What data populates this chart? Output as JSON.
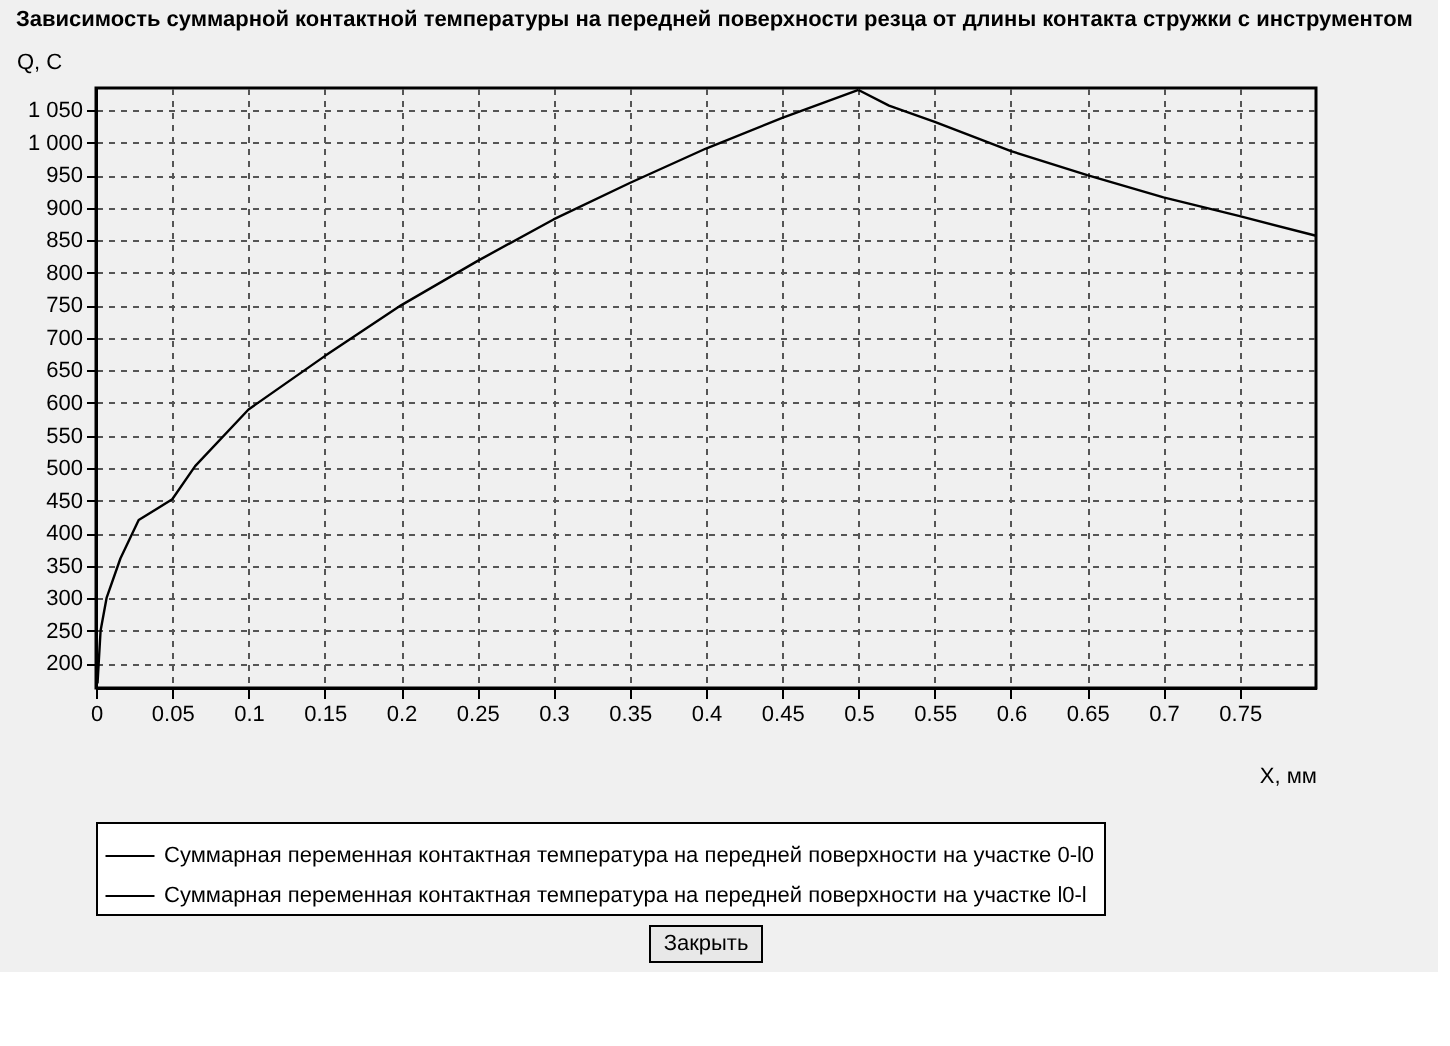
{
  "chart_data": {
    "type": "line",
    "title": "Зависимость суммарной контактной температуры на передней поверхности резца от длины контакта стружки с инструментом",
    "xlabel": "X, мм",
    "ylabel": "Q, C",
    "series": [
      {
        "name": "Суммарная переменная контактная температура на передней поверхности на участке 0-l0",
        "color": "#000000",
        "x": [
          0.001,
          0.003,
          0.007,
          0.016,
          0.028,
          0.05,
          0.065,
          0.1,
          0.15,
          0.2,
          0.25,
          0.3,
          0.35,
          0.4,
          0.45,
          0.5
        ],
        "values": [
          169,
          250,
          301,
          361,
          420,
          452,
          503,
          590,
          672,
          750,
          818,
          882,
          938,
          991,
          1038,
          1081
        ]
      },
      {
        "name": "Суммарная переменная контактная температура на передней поверхности на участке l0-l",
        "color": "#000000",
        "x": [
          0.5,
          0.52,
          0.55,
          0.6,
          0.65,
          0.7,
          0.75,
          0.8
        ],
        "values": [
          1081,
          1057,
          1032,
          987,
          950,
          916,
          887,
          857
        ]
      }
    ],
    "xlim": [
      0,
      0.8
    ],
    "xticks": [
      0,
      0.05,
      0.1,
      0.15,
      0.2,
      0.25,
      0.3,
      0.35,
      0.4,
      0.45,
      0.5,
      0.55,
      0.6,
      0.65,
      0.7,
      0.75
    ],
    "ylim": [
      162,
      1084
    ],
    "yticks": [
      200,
      250,
      300,
      350,
      400,
      450,
      500,
      550,
      600,
      650,
      700,
      750,
      800,
      850,
      900,
      950,
      {
        "value": 1000,
        "label": "1 000"
      },
      {
        "value": 1050,
        "label": "1 050"
      }
    ],
    "grid": true,
    "legend": "bottom",
    "marker": "none",
    "line_style": "solid",
    "annotations": [
      "Закрыть"
    ]
  }
}
